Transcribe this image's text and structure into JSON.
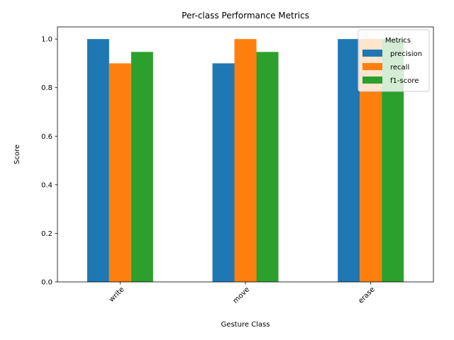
{
  "chart_data": {
    "type": "bar",
    "title": "Per-class Performance Metrics",
    "xlabel": "Gesture Class",
    "ylabel": "Score",
    "categories": [
      "write",
      "move",
      "erase"
    ],
    "series": [
      {
        "name": "precision",
        "values": [
          1.0,
          0.9,
          1.0
        ],
        "color": "#1f77b4"
      },
      {
        "name": "recall",
        "values": [
          0.9,
          1.0,
          1.0
        ],
        "color": "#ff7f0e"
      },
      {
        "name": "f1-score",
        "values": [
          0.947,
          0.947,
          1.0
        ],
        "color": "#2ca02c"
      }
    ],
    "ylim": [
      0,
      1.05
    ],
    "yticks": [
      "0.0",
      "0.2",
      "0.4",
      "0.6",
      "0.8",
      "1.0"
    ],
    "grid": false,
    "legend": {
      "title": "Metrics",
      "placement": "top-right"
    },
    "xtick_rotation": "45 degrees"
  }
}
